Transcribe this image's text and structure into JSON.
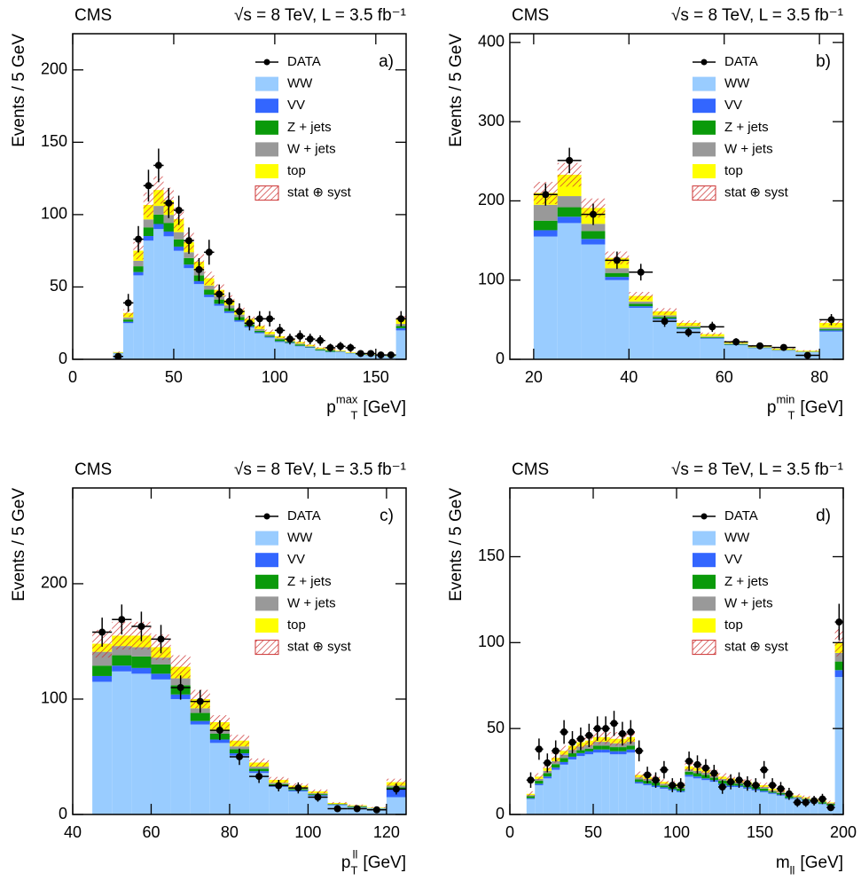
{
  "chart_data": [
    {
      "type": "histogram",
      "title": "CMS",
      "subtitle": "√s = 8 TeV, L = 3.5 fb⁻¹",
      "panel_label": "a)",
      "y_label": "Events / 5 GeV",
      "x_label": {
        "base": "p",
        "sub": "T",
        "sup": "max",
        "rest": "[GeV]"
      },
      "xlim": [
        0,
        165
      ],
      "xticks": [
        0,
        50,
        100,
        150
      ],
      "ylim": [
        0,
        225
      ],
      "yticks": [
        0,
        50,
        100,
        150,
        200
      ],
      "legend": "top-right",
      "bins": [
        20,
        25,
        30,
        35,
        40,
        45,
        50,
        55,
        60,
        65,
        70,
        75,
        80,
        85,
        90,
        95,
        100,
        105,
        110,
        115,
        120,
        125,
        130,
        135,
        140,
        145,
        150,
        155,
        160,
        165
      ],
      "series": [
        {
          "name": "WW",
          "color": "#99ccff",
          "values": [
            4,
            25,
            58,
            82,
            90,
            85,
            75,
            63,
            52,
            43,
            37,
            32,
            26,
            22,
            18,
            15,
            12,
            11,
            9,
            8,
            6,
            5,
            5,
            4,
            3,
            2.7,
            2.3,
            1.9,
            20
          ]
        },
        {
          "name": "VV",
          "color": "#3366ff",
          "values": [
            0.2,
            1,
            2.3,
            3.2,
            3.5,
            3.3,
            2.9,
            2.5,
            2,
            1.7,
            1.4,
            1.2,
            1,
            0.8,
            0.7,
            0.6,
            0.5,
            0.4,
            0.4,
            0.3,
            0.2,
            0.2,
            0.2,
            0.2,
            0.1,
            0.1,
            0.1,
            0.1,
            1.5
          ]
        },
        {
          "name": "Z + jets",
          "color": "#0a9a0a",
          "values": [
            0.2,
            1.5,
            4,
            6,
            6.5,
            6,
            5,
            4.5,
            4,
            3.5,
            2.9,
            2.1,
            2.2,
            1.3,
            1,
            0.7,
            1.3,
            0.6,
            0.9,
            0.3,
            0.7,
            0.8,
            0.2,
            0.1,
            0.3,
            0.2,
            0.1,
            0.2,
            1.5
          ]
        },
        {
          "name": "W + jets",
          "color": "#999999",
          "values": [
            0.2,
            1.5,
            3.8,
            5.5,
            6,
            5.5,
            5,
            4,
            3.4,
            2.8,
            2.4,
            2,
            1.7,
            1.4,
            1.2,
            1,
            0.8,
            0.7,
            0.6,
            0.5,
            0.4,
            0.4,
            0.3,
            0.2,
            0.2,
            0.2,
            0.2,
            0.1,
            1.5
          ]
        },
        {
          "name": "top",
          "color": "#ffff00",
          "values": [
            0.4,
            3,
            7,
            10,
            11,
            10,
            9,
            7,
            6,
            5,
            4.3,
            3.7,
            3.1,
            2.5,
            2.1,
            1.7,
            1.4,
            1.3,
            1.1,
            0.9,
            0.7,
            0.6,
            0.5,
            0.5,
            0.4,
            0.3,
            0.3,
            0.2,
            3.5
          ]
        }
      ],
      "band": {
        "name": "stat ⊕ syst",
        "color": "#cc3333",
        "values": [
          0.4,
          2.6,
          6,
          8.6,
          9.4,
          8.8,
          7.8,
          6.6,
          5.4,
          4.5,
          3.8,
          3.3,
          2.7,
          2.2,
          1.8,
          1.5,
          1.3,
          1.1,
          1,
          0.8,
          0.6,
          0.6,
          0.5,
          0.4,
          0.3,
          0.3,
          0.2,
          0.2,
          2.2
        ]
      },
      "data": {
        "name": "DATA",
        "color": "#000000",
        "values": [
          2,
          39,
          83,
          120,
          134,
          108,
          103,
          82,
          62,
          74,
          45,
          40,
          33,
          25,
          28,
          28,
          20,
          14,
          16,
          14,
          13,
          8,
          9,
          8,
          4,
          4,
          3,
          3,
          28
        ],
        "errors": [
          1.4,
          6.2,
          9.1,
          11,
          11.6,
          10.4,
          10.1,
          9.1,
          7.9,
          8.6,
          6.7,
          6.3,
          5.7,
          5,
          5.3,
          5.3,
          4.5,
          3.7,
          4,
          3.7,
          3.6,
          2.8,
          3,
          2.8,
          2,
          2,
          1.7,
          1.7,
          5.3
        ]
      }
    },
    {
      "type": "histogram",
      "title": "CMS",
      "subtitle": "√s = 8 TeV, L = 3.5 fb⁻¹",
      "panel_label": "b)",
      "y_label": "Events / 5 GeV",
      "x_label": {
        "base": "p",
        "sub": "T",
        "sup": "min",
        "rest": "[GeV]"
      },
      "xlim": [
        15,
        85
      ],
      "xticks": [
        20,
        40,
        60,
        80
      ],
      "ylim": [
        0,
        411
      ],
      "yticks": [
        0,
        100,
        200,
        300,
        400
      ],
      "legend": "top-right",
      "bins": [
        20,
        25,
        30,
        35,
        40,
        45,
        50,
        55,
        60,
        65,
        70,
        75,
        80,
        85
      ],
      "series": [
        {
          "name": "WW",
          "color": "#99ccff",
          "values": [
            155,
            172,
            145,
            100,
            65,
            50,
            38,
            26,
            18,
            14,
            11,
            9,
            35
          ]
        },
        {
          "name": "VV",
          "color": "#3366ff",
          "values": [
            8,
            8,
            7,
            4,
            2,
            1.5,
            1,
            0.8,
            0.5,
            0.4,
            0.3,
            0.2,
            1.5
          ]
        },
        {
          "name": "Z + jets",
          "color": "#0a9a0a",
          "values": [
            12,
            12,
            10,
            5,
            3,
            2,
            1.5,
            1,
            0.7,
            0.5,
            0.4,
            0.3,
            1.5
          ]
        },
        {
          "name": "W + jets",
          "color": "#999999",
          "values": [
            20,
            14,
            9,
            6,
            3,
            2,
            1.5,
            1,
            0.7,
            0.5,
            0.4,
            0.3,
            2
          ]
        },
        {
          "name": "top",
          "color": "#ffff00",
          "values": [
            15,
            27,
            20,
            13,
            7,
            5,
            4,
            3,
            2,
            1.5,
            1.2,
            1,
            6
          ]
        }
      ],
      "band": {
        "name": "stat ⊕ syst",
        "color": "#cc3333",
        "values": [
          14,
          15,
          12,
          8,
          5,
          4,
          3,
          2,
          1.5,
          1.2,
          1,
          0.8,
          3
        ]
      },
      "data": {
        "name": "DATA",
        "color": "#000000",
        "values": [
          208,
          251,
          183,
          125,
          110,
          48,
          34,
          41,
          22,
          17,
          15,
          5,
          50
        ],
        "errors": [
          14,
          16,
          13.5,
          11,
          10.5,
          7,
          5.8,
          6.4,
          4.7,
          4.1,
          3.9,
          2.2,
          7.1
        ]
      }
    },
    {
      "type": "histogram",
      "title": "CMS",
      "subtitle": "√s = 8 TeV, L = 3.5 fb⁻¹",
      "panel_label": "c)",
      "y_label": "Events / 5 GeV",
      "x_label": {
        "base": "p",
        "sub": "T",
        "sup": "ll",
        "rest": "[GeV]"
      },
      "xlim": [
        40,
        125
      ],
      "xticks": [
        40,
        60,
        80,
        100,
        120
      ],
      "ylim": [
        0,
        283
      ],
      "yticks": [
        0,
        100,
        200
      ],
      "legend": "top-right",
      "bins": [
        45,
        50,
        55,
        60,
        65,
        70,
        75,
        80,
        85,
        90,
        95,
        100,
        105,
        110,
        115,
        120,
        125
      ],
      "series": [
        {
          "name": "WW",
          "color": "#99ccff",
          "values": [
            115,
            124,
            122,
            117,
            100,
            78,
            62,
            51,
            36,
            24,
            20,
            16,
            8,
            6,
            5,
            15
          ]
        },
        {
          "name": "VV",
          "color": "#3366ff",
          "values": [
            5,
            5,
            5,
            5,
            4,
            3,
            3,
            2,
            1.5,
            1,
            1,
            0.8,
            0.4,
            0.3,
            0.2,
            7
          ]
        },
        {
          "name": "Z + jets",
          "color": "#0a9a0a",
          "values": [
            9,
            9,
            10,
            8,
            8,
            7,
            5,
            3.5,
            2.2,
            1.3,
            1,
            0.8,
            0.4,
            0.6,
            0.2,
            1.5
          ]
        },
        {
          "name": "W + jets",
          "color": "#999999",
          "values": [
            12,
            8,
            8,
            6,
            6,
            4,
            3,
            2.5,
            1.8,
            1.2,
            1,
            0.8,
            0.4,
            0.5,
            0.2,
            1.5
          ]
        },
        {
          "name": "top",
          "color": "#ffff00",
          "values": [
            7,
            9,
            10,
            9,
            10,
            8,
            7,
            5,
            3.5,
            2.5,
            2,
            1.6,
            0.8,
            0.6,
            0.4,
            3
          ]
        }
      ],
      "band": {
        "name": "stat ⊕ syst",
        "color": "#cc3333",
        "values": [
          12,
          12,
          12,
          11,
          10,
          8,
          6,
          5,
          3.5,
          2.5,
          2,
          1.6,
          0.8,
          0.6,
          0.5,
          3
        ]
      },
      "data": {
        "name": "DATA",
        "color": "#000000",
        "values": [
          158,
          169,
          163,
          152,
          110,
          98,
          73,
          50,
          33,
          25,
          23,
          15,
          5,
          5,
          4,
          22
        ],
        "errors": [
          12.6,
          13,
          12.8,
          12.3,
          10.5,
          9.9,
          8.5,
          7.1,
          5.7,
          5,
          4.8,
          3.9,
          2.2,
          2.2,
          2,
          4.7
        ]
      }
    },
    {
      "type": "histogram",
      "title": "CMS",
      "subtitle": "√s = 8 TeV, L = 3.5 fb⁻¹",
      "panel_label": "d)",
      "y_label": "Events / 5 GeV",
      "x_label": {
        "base": "m",
        "sub": "ll",
        "rest": "[GeV]"
      },
      "xlim": [
        0,
        200
      ],
      "xticks": [
        0,
        50,
        100,
        150,
        200
      ],
      "ylim": [
        0,
        190
      ],
      "yticks": [
        0,
        50,
        100,
        150
      ],
      "legend": "top-right",
      "bins": [
        10,
        15,
        20,
        25,
        30,
        35,
        40,
        45,
        50,
        55,
        60,
        65,
        70,
        75,
        80,
        85,
        90,
        95,
        100,
        105,
        110,
        115,
        120,
        125,
        130,
        135,
        140,
        145,
        150,
        155,
        160,
        165,
        170,
        175,
        180,
        185,
        190,
        195,
        200
      ],
      "series": [
        {
          "name": "WW",
          "color": "#99ccff",
          "values": [
            9,
            17,
            21,
            26,
            29,
            32,
            34,
            35,
            36,
            36,
            35,
            35,
            36,
            18,
            17,
            16,
            15,
            14,
            13,
            22,
            21,
            20,
            19,
            17,
            16,
            16,
            15,
            14,
            13,
            12,
            11,
            9,
            9,
            8,
            7,
            6,
            5,
            80
          ]
        },
        {
          "name": "VV",
          "color": "#3366ff",
          "values": [
            0.5,
            0.9,
            1.1,
            1.3,
            1.5,
            1.6,
            1.7,
            1.7,
            1.8,
            1.8,
            1.8,
            1.8,
            1.8,
            0.9,
            0.9,
            0.8,
            0.8,
            0.7,
            0.7,
            1.1,
            1.1,
            1,
            1,
            0.9,
            0.8,
            0.8,
            0.8,
            0.7,
            0.7,
            0.6,
            0.6,
            0.5,
            0.4,
            0.4,
            0.4,
            0.3,
            0.3,
            4
          ]
        },
        {
          "name": "Z + jets",
          "color": "#0a9a0a",
          "values": [
            1.2,
            1.7,
            1.9,
            2,
            2.4,
            2,
            1.7,
            1.5,
            2.2,
            2.2,
            2.4,
            2.4,
            2.2,
            1.5,
            1.7,
            1.8,
            1.1,
            1.3,
            1.4,
            1.8,
            1.9,
            2.1,
            1.4,
            1.7,
            1.8,
            1,
            1.1,
            1.3,
            1.4,
            0.7,
            0.9,
            1.2,
            0.3,
            0.5,
            0.6,
            0.8,
            0.9,
            5
          ]
        },
        {
          "name": "W + jets",
          "color": "#999999",
          "values": [
            0.6,
            1.1,
            1.4,
            1.7,
            1.9,
            2,
            2.1,
            2.2,
            2.3,
            2.3,
            2.2,
            2.2,
            2.3,
            1.2,
            1.1,
            1.1,
            1,
            0.9,
            0.9,
            1.4,
            1.4,
            1.3,
            1.2,
            1.1,
            1.1,
            1,
            1,
            0.9,
            0.9,
            0.8,
            0.7,
            0.6,
            0.6,
            0.5,
            0.5,
            0.4,
            0.4,
            5
          ]
        },
        {
          "name": "top",
          "color": "#ffff00",
          "values": [
            0.7,
            1.3,
            1.6,
            2,
            2.2,
            2.4,
            2.5,
            2.6,
            2.7,
            2.7,
            2.6,
            2.6,
            2.7,
            1.4,
            1.3,
            1.3,
            1.1,
            1.1,
            1,
            1.7,
            1.6,
            1.6,
            1.4,
            1.3,
            1.3,
            1.2,
            1.1,
            1.1,
            1,
            0.9,
            0.8,
            0.7,
            0.7,
            0.6,
            0.5,
            0.5,
            0.4,
            6
          ]
        }
      ],
      "band": {
        "name": "stat ⊕ syst",
        "color": "#cc3333",
        "values": [
          1.5,
          2,
          2.5,
          3,
          3,
          3.5,
          3.5,
          3.5,
          4,
          4,
          4,
          4,
          4,
          2,
          2,
          2,
          1.5,
          1.5,
          1.5,
          2.5,
          2.5,
          2,
          2,
          2,
          2,
          1.5,
          1.5,
          1.5,
          1.5,
          1.5,
          1,
          1,
          1,
          1,
          1,
          1,
          1,
          8
        ]
      },
      "data": {
        "name": "DATA",
        "color": "#000000",
        "values": [
          20,
          38,
          30,
          37,
          48,
          42,
          44,
          46,
          50,
          50,
          53,
          47,
          48,
          37,
          23,
          20,
          26,
          17,
          17,
          31,
          29,
          27,
          24,
          16,
          19,
          20,
          18,
          17,
          26,
          17,
          15,
          12,
          7,
          7,
          8,
          9,
          4,
          112
        ],
        "errors": [
          4.5,
          6.2,
          5.5,
          6.1,
          6.9,
          6.5,
          6.6,
          6.8,
          7.1,
          7.1,
          7.3,
          6.9,
          6.9,
          6.1,
          4.8,
          4.5,
          5.1,
          4.1,
          4.1,
          5.6,
          5.4,
          5.2,
          4.9,
          4,
          4.4,
          4.5,
          4.2,
          4.1,
          5.1,
          4.1,
          3.9,
          3.5,
          2.6,
          2.6,
          2.8,
          3,
          2,
          10.6
        ]
      }
    }
  ]
}
